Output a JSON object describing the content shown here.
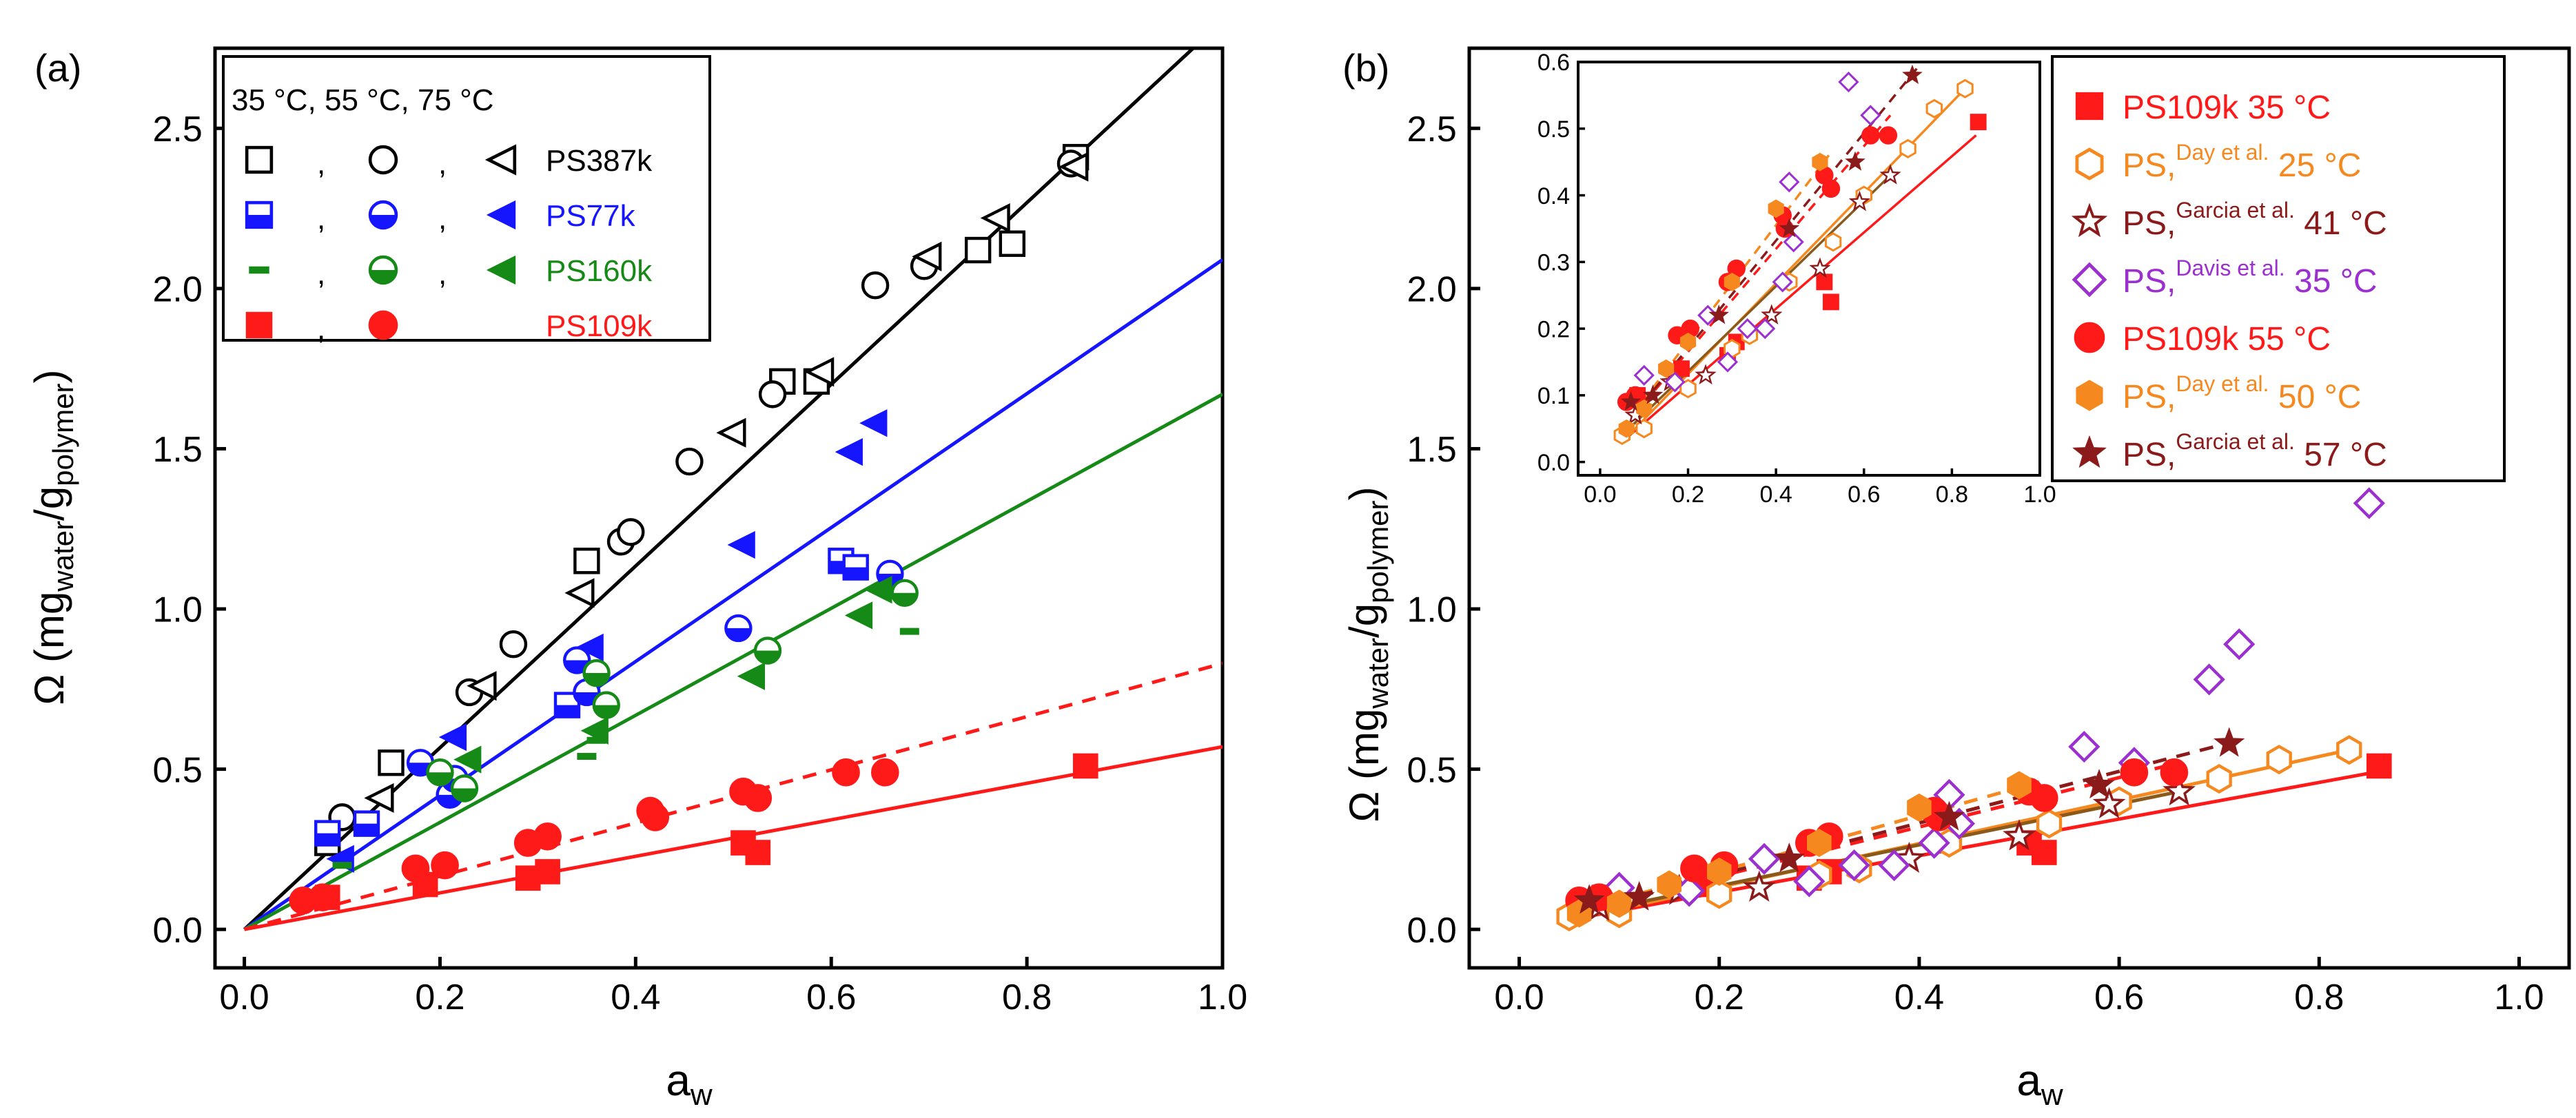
{
  "figure": {
    "panel_a": {
      "label": "(a)",
      "xlabel_main": "a",
      "xlabel_sub": "w",
      "ylabel_omega": "Ω (mg",
      "ylabel_sub1": "water",
      "ylabel_slash": "/g",
      "ylabel_sub2": "polymer",
      "ylabel_close": ")",
      "xticks": [
        "0.0",
        "0.2",
        "0.4",
        "0.6",
        "0.8",
        "1.0"
      ],
      "yticks": [
        "0.0",
        "0.5",
        "1.0",
        "1.5",
        "2.0",
        "2.5"
      ],
      "legend": {
        "header": "35 °C, 55 °C, 75 °C",
        "comma": ",",
        "rows": [
          {
            "label": "PS387k",
            "color": "#000000"
          },
          {
            "label": "PS77k",
            "color": "#1515ff"
          },
          {
            "label": "PS160k",
            "color": "#168a16"
          },
          {
            "label": "PS109k",
            "color": "#ff1a1a"
          }
        ]
      }
    },
    "panel_b": {
      "label": "(b)",
      "xlabel_main": "a",
      "xlabel_sub": "w",
      "ylabel_omega": "Ω (mg",
      "ylabel_sub1": "water",
      "ylabel_slash": "/g",
      "ylabel_sub2": "polymer",
      "ylabel_close": ")",
      "xticks": [
        "0.0",
        "0.2",
        "0.4",
        "0.6",
        "0.8",
        "1.0"
      ],
      "yticks": [
        "0.0",
        "0.5",
        "1.0",
        "1.5",
        "2.0",
        "2.5"
      ],
      "inset_xticks": [
        "0.0",
        "0.2",
        "0.4",
        "0.6",
        "0.8",
        "1.0"
      ],
      "inset_yticks": [
        "0.0",
        "0.1",
        "0.2",
        "0.3",
        "0.4",
        "0.5",
        "0.6"
      ],
      "legend": [
        {
          "pre": "PS109k 35 °C",
          "sup": "",
          "post": "",
          "color": "#ff1a1a"
        },
        {
          "pre": "PS,",
          "sup": "Day et al.",
          "post": " 25 °C",
          "color": "#f5891f"
        },
        {
          "pre": "PS,",
          "sup": "Garcia et al.",
          "post": " 41 °C",
          "color": "#8b1a1a"
        },
        {
          "pre": "PS,",
          "sup": "Davis et al.",
          "post": " 35 °C",
          "color": "#9b2fd0"
        },
        {
          "pre": "PS109k 55 °C",
          "sup": "",
          "post": "",
          "color": "#ff1a1a"
        },
        {
          "pre": "PS,",
          "sup": "Day et al.",
          "post": " 50 °C",
          "color": "#f5891f"
        },
        {
          "pre": "PS,",
          "sup": "Garcia et al.",
          "post": " 57 °C",
          "color": "#8b1a1a"
        }
      ]
    }
  },
  "chart_data": [
    {
      "type": "scatter",
      "title": "(a)",
      "xlabel": "a_w",
      "ylabel": "Ω (mg_water/g_polymer)",
      "xlim": [
        -0.03,
        1.0
      ],
      "ylim": [
        -0.12,
        2.75
      ],
      "series": [
        {
          "name": "PS387k 35 °C",
          "color": "#000000",
          "marker": "square-open",
          "points": [
            [
              0.085,
              0.27
            ],
            [
              0.15,
              0.52
            ],
            [
              0.35,
              1.15
            ],
            [
              0.55,
              1.71
            ],
            [
              0.585,
              1.71
            ],
            [
              0.75,
              2.12
            ],
            [
              0.785,
              2.14
            ],
            [
              0.85,
              2.41
            ]
          ]
        },
        {
          "name": "PS387k 55 °C",
          "color": "#000000",
          "marker": "circle-open",
          "points": [
            [
              0.1,
              0.35
            ],
            [
              0.23,
              0.74
            ],
            [
              0.275,
              0.89
            ],
            [
              0.385,
              1.21
            ],
            [
              0.395,
              1.24
            ],
            [
              0.455,
              1.46
            ],
            [
              0.54,
              1.67
            ],
            [
              0.645,
              2.01
            ],
            [
              0.695,
              2.07
            ],
            [
              0.845,
              2.39
            ]
          ]
        },
        {
          "name": "PS387k 75 °C",
          "color": "#000000",
          "marker": "triangle-left-open",
          "points": [
            [
              0.14,
              0.41
            ],
            [
              0.245,
              0.76
            ],
            [
              0.345,
              1.05
            ],
            [
              0.5,
              1.55
            ],
            [
              0.59,
              1.74
            ],
            [
              0.7,
              2.1
            ],
            [
              0.77,
              2.22
            ],
            [
              0.85,
              2.38
            ]
          ]
        },
        {
          "name": "PS77k 35 °C",
          "color": "#1515ff",
          "marker": "square-half",
          "points": [
            [
              0.085,
              0.3
            ],
            [
              0.125,
              0.33
            ],
            [
              0.33,
              0.7
            ],
            [
              0.61,
              1.15
            ],
            [
              0.625,
              1.13
            ]
          ]
        },
        {
          "name": "PS77k 55 °C",
          "color": "#1515ff",
          "marker": "circle-half",
          "points": [
            [
              0.18,
              0.52
            ],
            [
              0.21,
              0.42
            ],
            [
              0.215,
              0.47
            ],
            [
              0.34,
              0.84
            ],
            [
              0.35,
              0.74
            ],
            [
              0.505,
              0.94
            ],
            [
              0.66,
              1.11
            ]
          ]
        },
        {
          "name": "PS77k 75 °C",
          "color": "#1515ff",
          "marker": "triangle-left-filled",
          "points": [
            [
              0.1,
              0.22
            ],
            [
              0.215,
              0.6
            ],
            [
              0.355,
              0.88
            ],
            [
              0.51,
              1.2
            ],
            [
              0.62,
              1.49
            ],
            [
              0.645,
              1.58
            ]
          ]
        },
        {
          "name": "PS160k 35 °C",
          "color": "#168a16",
          "marker": "dash",
          "points": [
            [
              0.1,
              0.2
            ],
            [
              0.35,
              0.54
            ],
            [
              0.36,
              0.59
            ],
            [
              0.68,
              0.93
            ]
          ]
        },
        {
          "name": "PS160k 55 °C",
          "color": "#168a16",
          "marker": "circle-half",
          "points": [
            [
              0.2,
              0.49
            ],
            [
              0.225,
              0.44
            ],
            [
              0.36,
              0.8
            ],
            [
              0.37,
              0.7
            ],
            [
              0.535,
              0.87
            ],
            [
              0.675,
              1.05
            ]
          ]
        },
        {
          "name": "PS160k 75 °C",
          "color": "#168a16",
          "marker": "triangle-left-filled",
          "points": [
            [
              0.23,
              0.53
            ],
            [
              0.36,
              0.62
            ],
            [
              0.52,
              0.79
            ],
            [
              0.63,
              0.98
            ],
            [
              0.65,
              1.06
            ]
          ]
        },
        {
          "name": "PS109k 35 °C",
          "color": "#ff1a1a",
          "marker": "square-filled",
          "points": [
            [
              0.085,
              0.1
            ],
            [
              0.185,
              0.14
            ],
            [
              0.29,
              0.16
            ],
            [
              0.31,
              0.18
            ],
            [
              0.51,
              0.27
            ],
            [
              0.525,
              0.24
            ],
            [
              0.86,
              0.51
            ]
          ]
        },
        {
          "name": "PS109k 55 °C",
          "color": "#ff1a1a",
          "marker": "circle-filled",
          "points": [
            [
              0.06,
              0.09
            ],
            [
              0.08,
              0.1
            ],
            [
              0.175,
              0.19
            ],
            [
              0.205,
              0.2
            ],
            [
              0.29,
              0.27
            ],
            [
              0.31,
              0.29
            ],
            [
              0.415,
              0.37
            ],
            [
              0.42,
              0.35
            ],
            [
              0.51,
              0.43
            ],
            [
              0.525,
              0.41
            ],
            [
              0.615,
              0.49
            ],
            [
              0.655,
              0.49
            ]
          ]
        }
      ],
      "lines": [
        {
          "name": "PS387k fit",
          "color": "#000000",
          "style": "solid",
          "x": [
            0,
            0.97
          ],
          "y": [
            0,
            2.75
          ]
        },
        {
          "name": "PS77k fit",
          "color": "#1515ff",
          "style": "solid",
          "x": [
            0,
            1.0
          ],
          "y": [
            0,
            2.09
          ]
        },
        {
          "name": "PS160k fit",
          "color": "#168a16",
          "style": "solid",
          "x": [
            0,
            1.0
          ],
          "y": [
            0,
            1.67
          ]
        },
        {
          "name": "PS109k 55 °C fit",
          "color": "#ff1a1a",
          "style": "dashed",
          "x": [
            0,
            1.0
          ],
          "y": [
            0,
            0.83
          ]
        },
        {
          "name": "PS109k 35 °C fit",
          "color": "#ff1a1a",
          "style": "solid",
          "x": [
            0,
            1.0
          ],
          "y": [
            0,
            0.57
          ]
        }
      ]
    },
    {
      "type": "scatter",
      "title": "(b)",
      "xlabel": "a_w",
      "ylabel": "Ω (mg_water/g_polymer)",
      "xlim": [
        -0.05,
        1.05
      ],
      "ylim": [
        -0.12,
        2.75
      ],
      "series": [
        {
          "name": "PS109k 35 °C",
          "color": "#ff1a1a",
          "marker": "square-filled",
          "points": [
            [
              0.085,
              0.1
            ],
            [
              0.185,
              0.14
            ],
            [
              0.29,
              0.16
            ],
            [
              0.31,
              0.18
            ],
            [
              0.51,
              0.27
            ],
            [
              0.525,
              0.24
            ],
            [
              0.86,
              0.51
            ]
          ]
        },
        {
          "name": "PS, Day et al. 25 °C",
          "color": "#f5891f",
          "marker": "hexagon-open",
          "points": [
            [
              0.05,
              0.04
            ],
            [
              0.1,
              0.05
            ],
            [
              0.2,
              0.11
            ],
            [
              0.3,
              0.17
            ],
            [
              0.34,
              0.19
            ],
            [
              0.43,
              0.27
            ],
            [
              0.53,
              0.33
            ],
            [
              0.6,
              0.4
            ],
            [
              0.7,
              0.47
            ],
            [
              0.76,
              0.53
            ],
            [
              0.83,
              0.56
            ]
          ]
        },
        {
          "name": "PS, Garcia et al. 41 °C",
          "color": "#8b1a1a",
          "marker": "star-open",
          "points": [
            [
              0.08,
              0.07
            ],
            [
              0.16,
              0.12
            ],
            [
              0.24,
              0.13
            ],
            [
              0.39,
              0.22
            ],
            [
              0.5,
              0.29
            ],
            [
              0.59,
              0.39
            ],
            [
              0.66,
              0.43
            ]
          ]
        },
        {
          "name": "PS, Davis et al. 35 °C",
          "color": "#9b2fd0",
          "marker": "diamond-open",
          "points": [
            [
              0.1,
              0.13
            ],
            [
              0.17,
              0.12
            ],
            [
              0.245,
              0.22
            ],
            [
              0.29,
              0.15
            ],
            [
              0.335,
              0.2
            ],
            [
              0.375,
              0.2
            ],
            [
              0.415,
              0.27
            ],
            [
              0.43,
              0.42
            ],
            [
              0.44,
              0.33
            ],
            [
              0.565,
              0.57
            ],
            [
              0.615,
              0.52
            ],
            [
              0.69,
              0.78
            ],
            [
              0.72,
              0.89
            ],
            [
              0.85,
              1.33
            ]
          ]
        },
        {
          "name": "PS109k 55 °C",
          "color": "#ff1a1a",
          "marker": "circle-filled",
          "points": [
            [
              0.06,
              0.09
            ],
            [
              0.08,
              0.1
            ],
            [
              0.175,
              0.19
            ],
            [
              0.205,
              0.2
            ],
            [
              0.29,
              0.27
            ],
            [
              0.31,
              0.29
            ],
            [
              0.415,
              0.37
            ],
            [
              0.42,
              0.35
            ],
            [
              0.51,
              0.43
            ],
            [
              0.525,
              0.41
            ],
            [
              0.615,
              0.49
            ],
            [
              0.655,
              0.49
            ]
          ]
        },
        {
          "name": "PS, Day et al. 50 °C",
          "color": "#f5891f",
          "marker": "hexagon-filled",
          "points": [
            [
              0.06,
              0.05
            ],
            [
              0.1,
              0.08
            ],
            [
              0.15,
              0.14
            ],
            [
              0.2,
              0.18
            ],
            [
              0.3,
              0.27
            ],
            [
              0.4,
              0.38
            ],
            [
              0.5,
              0.45
            ]
          ]
        },
        {
          "name": "PS, Garcia et al. 57 °C",
          "color": "#8b1a1a",
          "marker": "star-filled",
          "points": [
            [
              0.07,
              0.09
            ],
            [
              0.12,
              0.1
            ],
            [
              0.27,
              0.22
            ],
            [
              0.43,
              0.35
            ],
            [
              0.58,
              0.45
            ],
            [
              0.71,
              0.58
            ]
          ]
        }
      ],
      "lines": [
        {
          "name": "PS109k 35 °C fit",
          "color": "#ff1a1a",
          "style": "solid",
          "x": [
            0.05,
            0.855
          ],
          "y": [
            0.03,
            0.49
          ]
        },
        {
          "name": "Day 25 °C fit",
          "color": "#f5891f",
          "style": "solid",
          "x": [
            0.05,
            0.83
          ],
          "y": [
            0.03,
            0.56
          ]
        },
        {
          "name": "Garcia 41 °C fit",
          "color": "#8b5a1a",
          "style": "solid",
          "x": [
            0.05,
            0.66
          ],
          "y": [
            0.04,
            0.43
          ]
        },
        {
          "name": "PS109k 55 °C fit",
          "color": "#ff1a1a",
          "style": "dashed",
          "x": [
            0.05,
            0.66
          ],
          "y": [
            0.05,
            0.52
          ]
        },
        {
          "name": "Day 50 °C fit",
          "color": "#f5891f",
          "style": "dashed",
          "x": [
            0.05,
            0.52
          ],
          "y": [
            0.05,
            0.46
          ]
        },
        {
          "name": "Garcia 57 °C fit",
          "color": "#8b1a1a",
          "style": "dashed",
          "x": [
            0.05,
            0.72
          ],
          "y": [
            0.05,
            0.59
          ]
        }
      ]
    },
    {
      "type": "scatter",
      "title": "(b) inset",
      "xlim": [
        -0.05,
        1.0
      ],
      "ylim": [
        -0.02,
        0.6
      ],
      "series_ref": "same as (b) series, zoomed"
    }
  ]
}
